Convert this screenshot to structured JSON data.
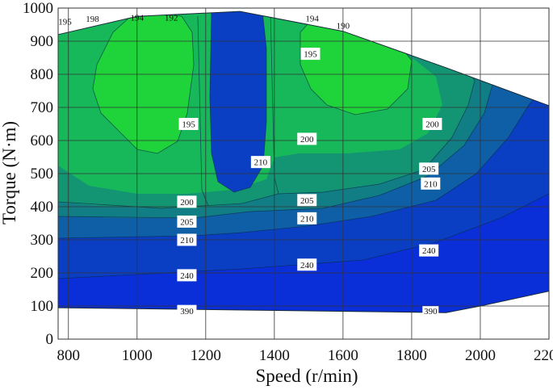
{
  "chart_data": {
    "type": "contour",
    "title": "",
    "xlabel": "Speed (r/min)",
    "ylabel": "Torque (N·m)",
    "xlim": [
      770,
      2200
    ],
    "ylim": [
      0,
      1000
    ],
    "x_ticks": [
      "800",
      "1000",
      "1200",
      "1400",
      "1600",
      "1800",
      "2000",
      "2200"
    ],
    "y_ticks": [
      "0",
      "100",
      "200",
      "300",
      "400",
      "500",
      "600",
      "700",
      "800",
      "900",
      "1000"
    ],
    "grid": true,
    "colors": {
      "green_light": "#1ed43a",
      "green_mid": "#17b85a",
      "green_dark": "#139473",
      "teal": "#117d85",
      "blue_teal": "#0f5fa6",
      "blue": "#0a3fc4",
      "blue_deep": "#0a2fd8",
      "grid": "#333333"
    },
    "boundary": [
      [
        770,
        920
      ],
      [
        1000,
        975
      ],
      [
        1300,
        990
      ],
      [
        1600,
        930
      ],
      [
        1900,
        820
      ],
      [
        2200,
        705
      ],
      [
        2200,
        145
      ],
      [
        2000,
        100
      ],
      [
        1900,
        80
      ],
      [
        770,
        95
      ]
    ],
    "contour_labels": [
      {
        "text": "195",
        "x": 790,
        "y": 960,
        "plain": true
      },
      {
        "text": "198",
        "x": 870,
        "y": 968,
        "plain": true
      },
      {
        "text": "194",
        "x": 1000,
        "y": 972,
        "plain": true
      },
      {
        "text": "192",
        "x": 1100,
        "y": 972,
        "plain": true
      },
      {
        "text": "194",
        "x": 1510,
        "y": 970,
        "plain": true
      },
      {
        "text": "190",
        "x": 1600,
        "y": 948,
        "plain": true
      },
      {
        "text": "195",
        "x": 1505,
        "y": 862
      },
      {
        "text": "195",
        "x": 1150,
        "y": 650
      },
      {
        "text": "200",
        "x": 1495,
        "y": 605
      },
      {
        "text": "200",
        "x": 1860,
        "y": 650
      },
      {
        "text": "210",
        "x": 1360,
        "y": 535
      },
      {
        "text": "205",
        "x": 1850,
        "y": 515
      },
      {
        "text": "210",
        "x": 1855,
        "y": 470
      },
      {
        "text": "200",
        "x": 1145,
        "y": 415
      },
      {
        "text": "205",
        "x": 1495,
        "y": 420
      },
      {
        "text": "210",
        "x": 1495,
        "y": 365
      },
      {
        "text": "205",
        "x": 1145,
        "y": 355
      },
      {
        "text": "210",
        "x": 1145,
        "y": 300
      },
      {
        "text": "240",
        "x": 1850,
        "y": 268
      },
      {
        "text": "240",
        "x": 1495,
        "y": 225
      },
      {
        "text": "240",
        "x": 1145,
        "y": 193
      },
      {
        "text": "390",
        "x": 1145,
        "y": 85
      },
      {
        "text": "390",
        "x": 1855,
        "y": 85,
        "small": true
      }
    ]
  }
}
